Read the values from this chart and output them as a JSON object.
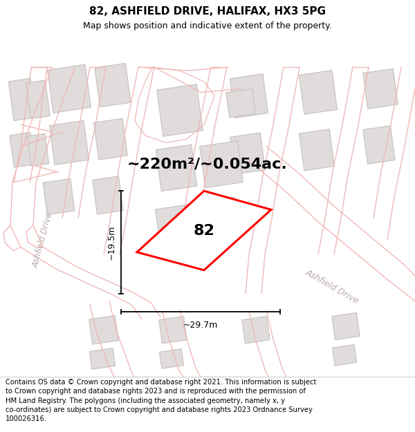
{
  "title": "82, ASHFIELD DRIVE, HALIFAX, HX3 5PG",
  "subtitle": "Map shows position and indicative extent of the property.",
  "footer": "Contains OS data © Crown copyright and database right 2021. This information is subject to Crown copyright and database rights 2023 and is reproduced with the permission of HM Land Registry. The polygons (including the associated geometry, namely x, y co-ordinates) are subject to Crown copyright and database rights 2023 Ordnance Survey 100026316.",
  "area_text": "~220m²/~0.054ac.",
  "property_label": "82",
  "dim_width": "~29.7m",
  "dim_height": "~19.5m",
  "map_bg": "#ffffff",
  "road_line_color": "#f0b8b8",
  "road_fill_color": "#fce8e8",
  "building_fill": "#e0dcdc",
  "building_edge": "#c8c0c0",
  "property_fill": "#ffffff",
  "property_edge": "#ff0000",
  "street_label_color": "#b8a8a8",
  "title_fontsize": 11,
  "subtitle_fontsize": 9,
  "footer_fontsize": 7.2,
  "area_fontsize": 16,
  "label_fontsize": 16,
  "dim_fontsize": 9
}
